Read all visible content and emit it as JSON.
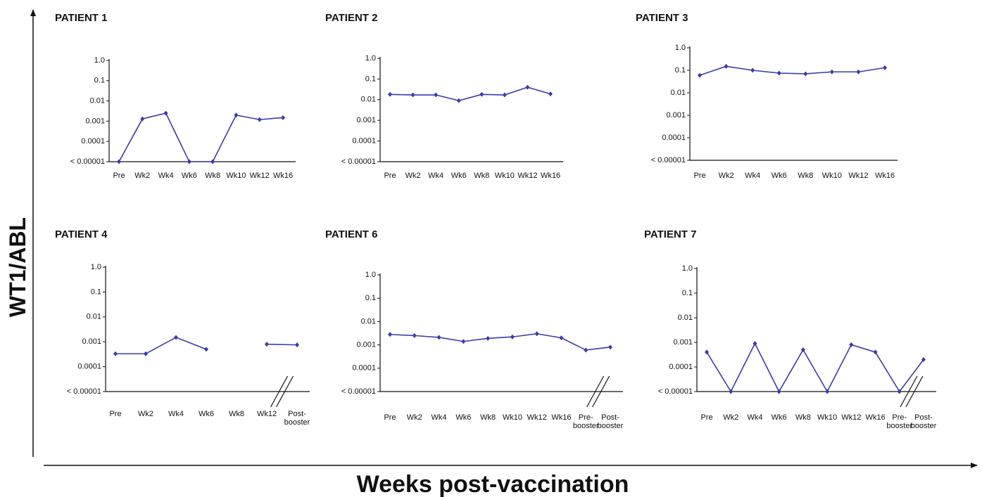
{
  "ylabel": "WT1/ABL",
  "xlabel": "Weeks post-vaccination",
  "chart_data": [
    {
      "type": "line",
      "title": "PATIENT 1",
      "log_scale": true,
      "color": "#3b3ba6",
      "categories": [
        "Pre",
        "Wk2",
        "Wk4",
        "Wk6",
        "Wk8",
        "Wk10",
        "Wk12",
        "Wk16"
      ],
      "values": [
        1e-05,
        0.0013,
        0.0025,
        1e-05,
        1e-05,
        0.002,
        0.0012,
        0.0015
      ],
      "ylim": [
        1e-05,
        1
      ],
      "yticks": [
        {
          "value": 1e-05,
          "label": "< 0.00001"
        },
        0.0001,
        0.001,
        0.01,
        0.1,
        {
          "value": 1,
          "label": "1.0"
        }
      ]
    },
    {
      "type": "line",
      "title": "PATIENT 2",
      "log_scale": true,
      "color": "#3b3ba6",
      "categories": [
        "Pre",
        "Wk2",
        "Wk4",
        "Wk6",
        "Wk8",
        "Wk10",
        "Wk12",
        "Wk16"
      ],
      "values": [
        0.018,
        0.017,
        0.017,
        0.009,
        0.018,
        0.017,
        0.04,
        0.019
      ],
      "ylim": [
        1e-05,
        1
      ],
      "yticks": [
        {
          "value": 1e-05,
          "label": "< 0.00001"
        },
        0.0001,
        0.001,
        0.01,
        0.1,
        {
          "value": 1,
          "label": "1.0"
        }
      ]
    },
    {
      "type": "line",
      "title": "PATIENT 3",
      "log_scale": true,
      "color": "#3b3ba6",
      "categories": [
        "Pre",
        "Wk2",
        "Wk4",
        "Wk6",
        "Wk8",
        "Wk10",
        "Wk12",
        "Wk16"
      ],
      "values": [
        0.06,
        0.15,
        0.1,
        0.075,
        0.07,
        0.085,
        0.085,
        0.13
      ],
      "ylim": [
        1e-05,
        1
      ],
      "yticks": [
        {
          "value": 1e-05,
          "label": "< 0.00001"
        },
        0.0001,
        0.001,
        0.01,
        0.1,
        {
          "value": 1,
          "label": "1.0"
        }
      ]
    },
    {
      "type": "line",
      "title": "PATIENT 4",
      "log_scale": true,
      "color": "#3b3ba6",
      "axis_break": true,
      "categories": [
        "Pre",
        "Wk2",
        "Wk4",
        "Wk6",
        "Wk8",
        "Wk12",
        "Post-\nbooster"
      ],
      "values": [
        0.00033,
        0.00033,
        0.0015,
        0.0005,
        null,
        0.0008,
        0.00075
      ],
      "ylim": [
        1e-05,
        1
      ],
      "yticks": [
        {
          "value": 1e-05,
          "label": "< 0.00001"
        },
        0.0001,
        0.001,
        0.01,
        0.1,
        {
          "value": 1,
          "label": "1.0"
        }
      ]
    },
    {
      "type": "line",
      "title": "PATIENT 6",
      "log_scale": true,
      "color": "#3b3ba6",
      "axis_break": true,
      "categories": [
        "Pre",
        "Wk2",
        "Wk4",
        "Wk6",
        "Wk8",
        "Wk10",
        "Wk12",
        "Wk16",
        "Pre-\nbooster",
        "Post-\nbooster"
      ],
      "values": [
        0.0028,
        0.0025,
        0.0021,
        0.0014,
        0.0019,
        0.0022,
        0.003,
        0.002,
        0.0006,
        0.0008
      ],
      "ylim": [
        1e-05,
        1
      ],
      "yticks": [
        {
          "value": 1e-05,
          "label": "< 0.00001"
        },
        0.0001,
        0.001,
        0.01,
        0.1,
        {
          "value": 1,
          "label": "1.0"
        }
      ]
    },
    {
      "type": "line",
      "title": "PATIENT 7",
      "log_scale": true,
      "color": "#3b3ba6",
      "axis_break": true,
      "categories": [
        "Pre",
        "Wk2",
        "Wk4",
        "Wk6",
        "Wk8",
        "Wk10",
        "Wk12",
        "Wk16",
        "Pre-\nbooster",
        "Post-\nbooster"
      ],
      "values": [
        0.0004,
        1e-05,
        0.0009,
        1e-05,
        0.0005,
        1e-05,
        0.0008,
        0.0004,
        1e-05,
        0.0002
      ],
      "ylim": [
        1e-05,
        1
      ],
      "yticks": [
        {
          "value": 1e-05,
          "label": "< 0.00001"
        },
        0.0001,
        0.001,
        0.01,
        0.1,
        {
          "value": 1,
          "label": "1.0"
        }
      ]
    }
  ]
}
